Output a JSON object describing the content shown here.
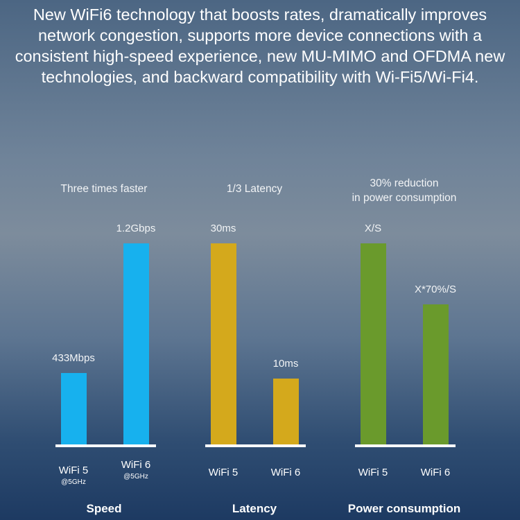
{
  "headline": "New WiFi6 technology that boosts rates, dramatically improves network congestion, supports more device connections with a consistent high-speed experience, new MU-MIMO and OFDMA new technologies, and backward compatibility with Wi-Fi5/Wi-Fi4.",
  "chart_data": [
    {
      "type": "bar",
      "title": "Three times faster",
      "group_label": "Speed",
      "color": "#17b1ee",
      "categories": [
        "WiFi 5",
        "WiFi 6"
      ],
      "sublabels": [
        "@5GHz",
        "@5GHz"
      ],
      "values": [
        433,
        1200
      ],
      "unit": "Mbps",
      "data_labels": [
        "433Mbps",
        "1.2Gbps"
      ]
    },
    {
      "type": "bar",
      "title": "1/3 Latency",
      "group_label": "Latency",
      "color": "#d4a91c",
      "categories": [
        "WiFi 5",
        "WiFi 6"
      ],
      "sublabels": [
        "",
        ""
      ],
      "values": [
        30,
        10
      ],
      "unit": "ms",
      "data_labels": [
        "30ms",
        "10ms"
      ]
    },
    {
      "type": "bar",
      "title": "30% reduction in power consumption",
      "group_label": "Power consumption",
      "color": "#6a9a2c",
      "categories": [
        "WiFi 5",
        "WiFi 6"
      ],
      "sublabels": [
        "",
        ""
      ],
      "values": [
        100,
        70
      ],
      "unit": "%",
      "data_labels": [
        "X/S",
        "X*70%/S"
      ]
    }
  ]
}
